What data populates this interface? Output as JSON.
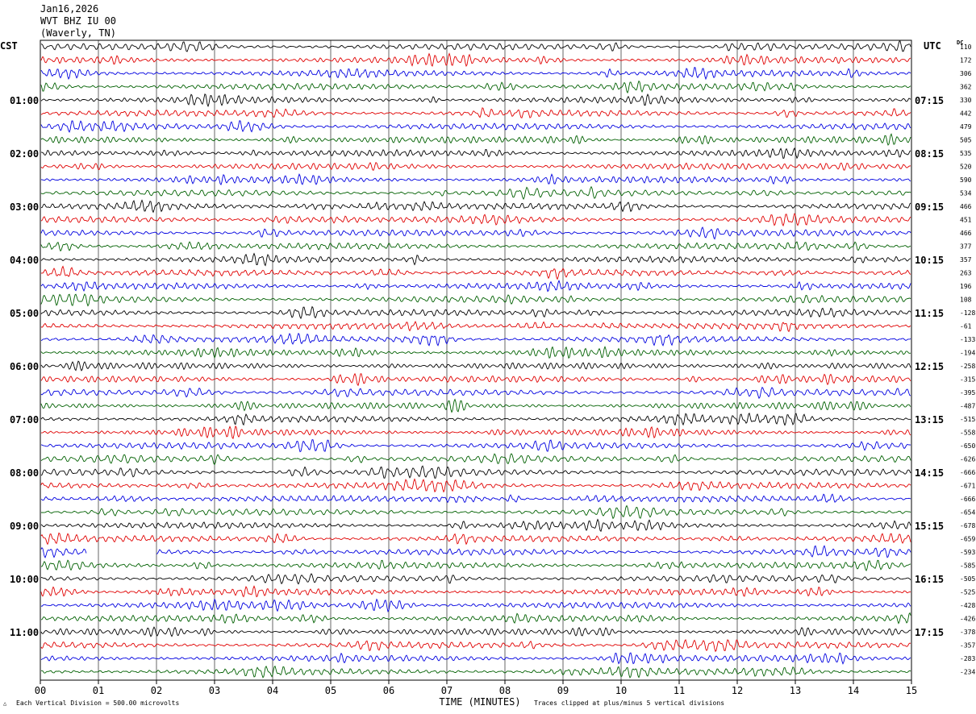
{
  "header": {
    "date": "Jan16,2026",
    "station": "WVT BHZ IU 00",
    "location": "(Waverly, TN)"
  },
  "left_tz": "CST",
  "right_tz": "UTC",
  "dc_label": "DC",
  "chart_data": {
    "type": "line",
    "title": "",
    "xlabel": "TIME (MINUTES)",
    "x_ticks": [
      "00",
      "01",
      "02",
      "03",
      "04",
      "05",
      "06",
      "07",
      "08",
      "09",
      "10",
      "11",
      "12",
      "13",
      "14",
      "15"
    ],
    "xlim": [
      0,
      15
    ],
    "left_time_labels": [
      "01:00",
      "02:00",
      "03:00",
      "04:00",
      "05:00",
      "06:00",
      "07:00",
      "08:00",
      "09:00",
      "10:00",
      "11:00"
    ],
    "right_time_labels": [
      "07:15",
      "08:15",
      "09:15",
      "10:15",
      "11:15",
      "12:15",
      "13:15",
      "14:15",
      "15:15",
      "16:15",
      "17:15"
    ],
    "trace_colors": [
      "#000000",
      "#e00000",
      "#0000e0",
      "#006000"
    ],
    "dc_values": [
      "110",
      "172",
      "306",
      "362",
      "330",
      "442",
      "479",
      "505",
      "535",
      "520",
      "590",
      "534",
      "466",
      "451",
      "466",
      "377",
      "357",
      "263",
      "196",
      "108",
      "-128",
      "-61",
      "-133",
      "-194",
      "-258",
      "-315",
      "-395",
      "-487",
      "-515",
      "-558",
      "-650",
      "-626",
      "-666",
      "-671",
      "-666",
      "-654",
      "-678",
      "-659",
      "-593",
      "-585",
      "-505",
      "-525",
      "-428",
      "-426",
      "-378",
      "-357",
      "-283",
      "-234"
    ],
    "gap": {
      "row": 38,
      "from_minute": 0.8,
      "to_minute": 2.0
    }
  },
  "footer": {
    "scale_note": "Each Vertical Division =  500.00 microvolts",
    "clip_note": "Traces clipped at plus/minus 5 vertical divisions"
  }
}
